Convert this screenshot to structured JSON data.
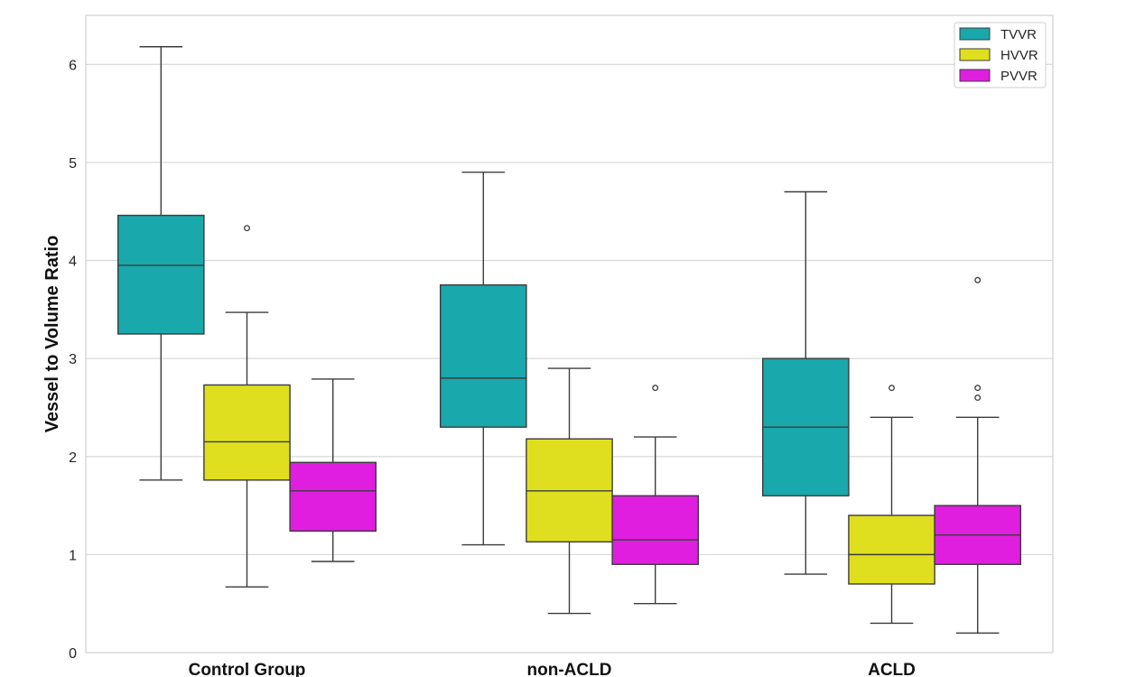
{
  "chart_data": {
    "type": "boxplot",
    "title": "",
    "xlabel": "",
    "ylabel": "Vessel to Volume Ratio",
    "ylim": [
      0,
      6.5
    ],
    "yticks": [
      0,
      1,
      2,
      3,
      4,
      5,
      6
    ],
    "grid": "horizontal",
    "legend_position": "top-right",
    "categories": [
      "Control Group",
      "non-ACLD",
      "ACLD"
    ],
    "series": [
      {
        "name": "TVVR",
        "color": "#19a8ab",
        "boxes": [
          {
            "whislo": 1.76,
            "q1": 3.25,
            "med": 3.95,
            "q3": 4.46,
            "whishi": 6.18,
            "fliers": []
          },
          {
            "whislo": 1.1,
            "q1": 2.3,
            "med": 2.8,
            "q3": 3.75,
            "whishi": 4.9,
            "fliers": []
          },
          {
            "whislo": 0.8,
            "q1": 1.6,
            "med": 2.3,
            "q3": 3.0,
            "whishi": 4.7,
            "fliers": []
          }
        ]
      },
      {
        "name": "HVVR",
        "color": "#dfdf1f",
        "boxes": [
          {
            "whislo": 0.67,
            "q1": 1.76,
            "med": 2.15,
            "q3": 2.73,
            "whishi": 3.47,
            "fliers": [
              4.33
            ]
          },
          {
            "whislo": 0.4,
            "q1": 1.13,
            "med": 1.65,
            "q3": 2.18,
            "whishi": 2.9,
            "fliers": []
          },
          {
            "whislo": 0.3,
            "q1": 0.7,
            "med": 1.0,
            "q3": 1.4,
            "whishi": 2.4,
            "fliers": [
              2.7
            ]
          }
        ]
      },
      {
        "name": "PVVR",
        "color": "#e01ee0",
        "boxes": [
          {
            "whislo": 0.93,
            "q1": 1.24,
            "med": 1.65,
            "q3": 1.94,
            "whishi": 2.79,
            "fliers": []
          },
          {
            "whislo": 0.5,
            "q1": 0.9,
            "med": 1.15,
            "q3": 1.6,
            "whishi": 2.2,
            "fliers": [
              2.7
            ]
          },
          {
            "whislo": 0.2,
            "q1": 0.9,
            "med": 1.2,
            "q3": 1.5,
            "whishi": 2.4,
            "fliers": [
              2.6,
              2.7,
              3.8
            ]
          }
        ]
      }
    ]
  }
}
